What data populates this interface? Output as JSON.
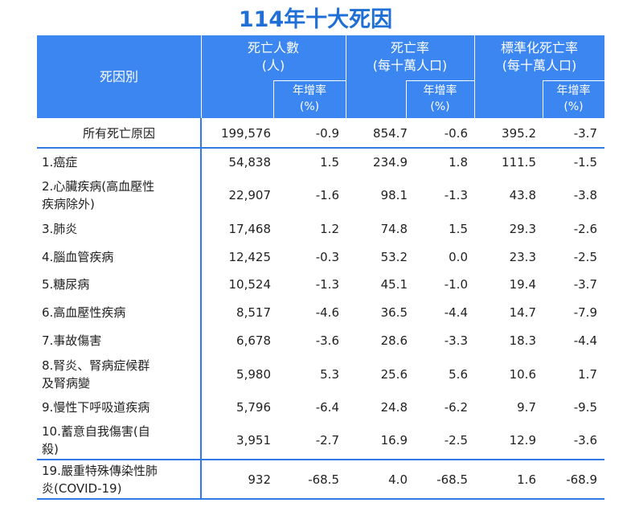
{
  "header": {
    "title": "114年十大死因"
  },
  "table": {
    "head": {
      "label": "死因別",
      "groups": [
        {
          "title": "死亡人數",
          "unit": "(人)"
        },
        {
          "title": "死亡率",
          "unit": "(每十萬人口)"
        },
        {
          "title": "標準化死亡率",
          "unit": "(每十萬人口)"
        }
      ],
      "sub": [
        {
          "title": "年增率",
          "unit": "(%)"
        },
        {
          "title": "年增率",
          "unit": "(%)"
        },
        {
          "title": "年增率",
          "unit": "(%)"
        }
      ]
    },
    "rows": [
      [
        "所有死亡原因",
        "199,576",
        "-0.9",
        "854.7",
        "-0.6",
        "395.2",
        "-3.7"
      ],
      [
        "1.癌症",
        "54,838",
        "1.5",
        "234.9",
        "1.8",
        "111.5",
        "-1.5"
      ],
      [
        "2.心臟疾病(高血壓性\n疾病除外)",
        "22,907",
        "-1.6",
        "98.1",
        "-1.3",
        "43.8",
        "-3.8"
      ],
      [
        "3.肺炎",
        "17,468",
        "1.2",
        "74.8",
        "1.5",
        "29.3",
        "-2.6"
      ],
      [
        "4.腦血管疾病",
        "12,425",
        "-0.3",
        "53.2",
        "0.0",
        "23.3",
        "-2.5"
      ],
      [
        "5.糖尿病",
        "10,524",
        "-1.3",
        "45.1",
        "-1.0",
        "19.4",
        "-3.7"
      ],
      [
        "6.高血壓性疾病",
        "8,517",
        "-4.6",
        "36.5",
        "-4.4",
        "14.7",
        "-7.9"
      ],
      [
        "7.事故傷害",
        "6,678",
        "-3.6",
        "28.6",
        "-3.3",
        "18.3",
        "-4.4"
      ],
      [
        "8.腎炎、腎病症候群\n及腎病變",
        "5,980",
        "5.3",
        "25.6",
        "5.6",
        "10.6",
        "1.7"
      ],
      [
        "9.慢性下呼吸道疾病",
        "5,796",
        "-6.4",
        "24.8",
        "-6.2",
        "9.7",
        "-9.5"
      ],
      [
        "10.蓄意自我傷害(自\n殺)",
        "3,951",
        "-2.7",
        "16.9",
        "-2.5",
        "12.9",
        "-3.6"
      ],
      [
        "19.嚴重特殊傳染性肺\n炎(COVID-19)",
        "932",
        "-68.5",
        "4.0",
        "-68.5",
        "1.6",
        "-68.9"
      ]
    ]
  }
}
